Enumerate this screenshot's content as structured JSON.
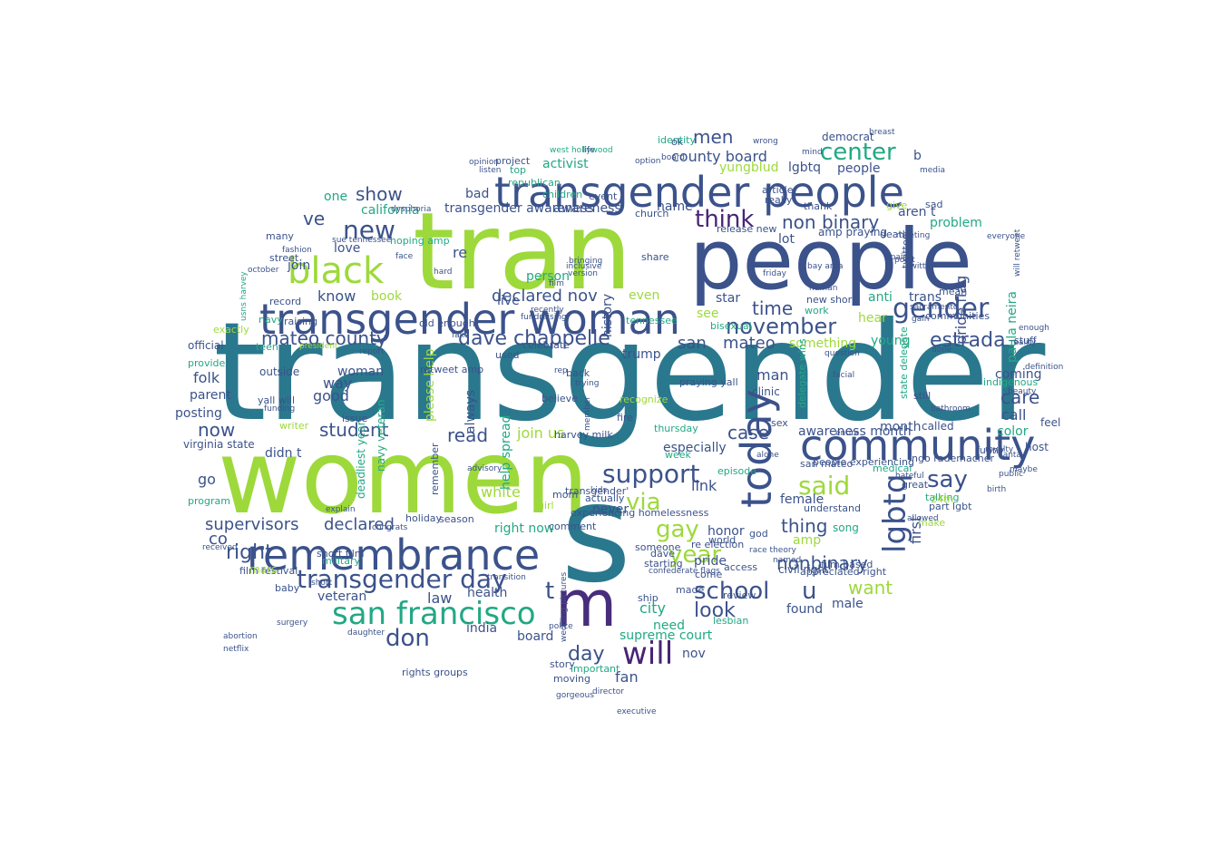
{
  "palette": {
    "teal": "#2a788e",
    "navy": "#3b528b",
    "purple": "#472d7b",
    "violet": "#482475",
    "green": "#22a884",
    "lime": "#9dd93b",
    "yellow": "#d8e219",
    "sea": "#1f9e89",
    "blue": "#31688e"
  },
  "words": {
    "transgender": "transgender",
    "women": "women",
    "tran": "tran",
    "people": "people",
    "s": "s",
    "m": "m",
    "community": "community",
    "transgender_woman": "transgender woman",
    "transgender_people": "transgender people",
    "remembrance": "remembrance",
    "today": "today",
    "black": "black",
    "san_francisco": "san francisco",
    "transgender_day": "transgender day",
    "will": "will",
    "support": "support",
    "gender": "gender",
    "november": "november",
    "lgbtq": "lgbtq",
    "think": "think",
    "mateo_county": "mateo county",
    "dave_chappelle": "dave chappelle",
    "new": "new",
    "show": "show",
    "center": "center",
    "year": "year",
    "declared_nov": "declared nov",
    "said": "said",
    "say": "say",
    "estrada": "estrada",
    "school": "school",
    "don": "don",
    "t": "t",
    "u": "u",
    "gay": "gay",
    "via": "via",
    "day": "day",
    "right": "right",
    "supervisors": "supervisors",
    "declared": "declared",
    "nonbinary": "nonbinary",
    "non_binary": "non binary",
    "look": "look",
    "student": "student",
    "read": "read",
    "now": "now",
    "care": "care",
    "case": "case",
    "thing": "thing",
    "want": "want",
    "time": "time",
    "men": "men",
    "county_board": "county board",
    "california": "california",
    "ve": "ve",
    "activist": "activist",
    "awareness": "awareness",
    "transgender_awareness": "transgender awareness",
    "yungblud": "yungblud",
    "lgbtq2": "lgbtq",
    "know": "know",
    "book": "book",
    "join": "join",
    "love": "love",
    "folk": "folk",
    "parent": "parent",
    "posting": "posting",
    "woman": "woman",
    "way": "way",
    "good": "good",
    "co": "co",
    "go": "go",
    "didn_t": "didn t",
    "join_us": "join us",
    "white": "white",
    "right_now": "right now",
    "law": "law",
    "health": "health",
    "india": "india",
    "board": "board",
    "veteran": "veteran",
    "history": "history",
    "please_help": "please help",
    "always": "always",
    "help_spread": "help spread",
    "mateo": "mateo",
    "san": "san",
    "trump": "trump",
    "even": "even",
    "link": "link",
    "see": "see",
    "star": "star",
    "man": "man",
    "especially": "especially",
    "awareness_month": "awareness month",
    "first": "first",
    "pride_flag": "pride flag",
    "paula_neira": "paula neira",
    "young": "young",
    "hear": "hear",
    "anti": "anti",
    "trans": "trans",
    "coming": "coming",
    "call": "call",
    "color": "color",
    "called": "called",
    "aren_t": "aren t",
    "problem": "problem",
    "amp_praying": "amp praying",
    "something": "something",
    "honor": "honor",
    "pride": "pride",
    "female": "female",
    "male": "male",
    "found": "found",
    "song": "song",
    "amp": "amp",
    "supreme_court": "supreme court",
    "need": "need",
    "city": "city",
    "fan": "fan",
    "nov": "nov",
    "never": "never",
    "person": "person",
    "bad": "bad",
    "one": "one",
    "name": "name",
    "lot": "lot",
    "clinic": "clinic",
    "people2": "people",
    "b": "b",
    "democrat": "democrat",
    "live": "live",
    "re": "re",
    "virginia_state": "virginia state",
    "outside": "outside",
    "official": "official",
    "teen": "teen",
    "film_festival": "film festival",
    "navy_veteran": "navy veteran",
    "deadliest_year": "deadliest year",
    "military": "military",
    "short_film": "short film",
    "mars": "mars",
    "writer": "writer",
    "program": "program",
    "navy": "navy",
    "raising": "raising",
    "yall_will": "yall will",
    "issue": "issue",
    "civil_right": "civil right",
    "film_based": "film based",
    "world": "world",
    "lesbian": "lesbian",
    "review": "review",
    "bisexual": "bisexual",
    "god": "god",
    "sex": "sex",
    "host": "host",
    "feel": "feel",
    "indigenous": "indigenous",
    "mean": "mean",
    "still": "still",
    "talking": "talking",
    "part_lgbt": "part lgbt",
    "medical": "medical",
    "great": "great",
    "make": "make",
    "24th": "24th",
    "give": "give",
    "twitter": "twitter",
    "communities": "communities",
    "ingo_rademacher": "ingo rademacher",
    "sad": "sad",
    "stuff": "stuff",
    "funny": "funny",
    "believe": "believe",
    "celebrate": "celebrate",
    "tennessee": "tennessee",
    "thursday": "thursday",
    "episode": "episode",
    "re_election": "re election",
    "access": "access",
    "used": "used",
    "comment": "comment",
    "season": "season",
    "holiday": "holiday",
    "mom": "mom",
    "actually": "actually",
    "experiencing_homelessness": "experiencing homelessness",
    "share": "share",
    "children": "children",
    "event": "event",
    "church": "church",
    "identity": "identity",
    "article": "article",
    "really": "really",
    "friday": "friday",
    "release_new": "release new",
    "work": "work",
    "new_short": "new short",
    "retweet_amp": "retweet amp",
    "old_enough": "old enough",
    "project": "project",
    "top": "top",
    "republican": "republican",
    "fundraising": "fundraising",
    "story": "story",
    "rights_groups": "rights groups",
    "important": "important",
    "director": "director",
    "executive": "executive",
    "remember": "remember",
    "congrats": "congrats",
    "advisory": "advisory",
    "girl": "girl",
    "west_hollywood": "west hollywood",
    "life": "life",
    "ok": "ok",
    "wrong": "wrong",
    "mind": "mind",
    "thank": "thank",
    "death": "death",
    "spain": "spain",
    "media": "media",
    "bay_area": "bay area",
    "human": "human",
    "facial": "facial",
    "question": "question",
    "month": "month",
    "delegate_wins": "delegate wins",
    "state_delegate": "state delegate",
    "entire": "entire",
    "praying_yall": "praying yall",
    "recognize": "recognize",
    "fire": "fire",
    "harvey_milk": "harvey milk",
    "member": "member",
    "week": "week",
    "alone": "alone",
    "san_mateo": "san mateo",
    "people_experiencing": "people experiencing",
    "understand": "understand",
    "appreciated_right": "appreciated right",
    "race_theory": "race theory",
    "named": "named",
    "ship": "ship",
    "come": "come",
    "made": "made",
    "starting": "starting",
    "dave": "dave",
    "moving": "moving",
    "wedding_pictures": "wedding pictures",
    "police": "police",
    "board2": "board",
    "everyone": "everyone",
    "twitter2": "twitter",
    "will_retweet": "will retweet",
    "definition": "definition",
    "funding": "funding",
    "baby": "baby",
    "provide": "provide",
    "exactly": "exactly",
    "record": "record",
    "many": "many",
    "street": "street",
    "october": "october",
    "usns_harvey": "usns harvey",
    "hoping_amp": "hoping amp",
    "sue_tennessee": "sue tennessee",
    "president": "president",
    "bathroom": "bathroom",
    "hateful": "hateful",
    "allowed": "allowed",
    "confederate_flags": "confederate flags",
    "recently": "recently",
    "back": "back",
    "inclusive": "inclusive",
    "listen": "listen",
    "dysphoria": "dysphoria",
    "beauty": "beauty",
    "sacramento": "sacramento",
    "gain": "gain",
    "done": "done",
    "gorgeous": "gorgeous",
    "trying": "trying",
    "option": "option",
    "reality": "reality",
    "point": "point",
    "meeting": "meeting",
    "someone": "someone",
    "fashion": "fashion",
    "surgery": "surgery",
    "abortion": "abortion",
    "netflix": "netflix",
    "received": "received",
    "transgender_tick": "transgender'",
    "short": "short",
    "explain": "explain",
    "bringing": "bringing",
    "version": "version",
    "face": "face",
    "report": "report",
    "transition": "transition",
    "kids": "kids",
    "royalty": "royalty",
    "maybe": "maybe",
    "public": "public",
    "birth": "birth",
    "santa": "santa",
    "enough": "enough",
    "breast": "breast",
    "daughter": "daughter",
    "rep": "rep",
    "film": "film",
    "opinion": "opinion",
    "hard": "hard",
    "fake": "fake"
  },
  "icons": {
    "background": "cloud-shape"
  }
}
